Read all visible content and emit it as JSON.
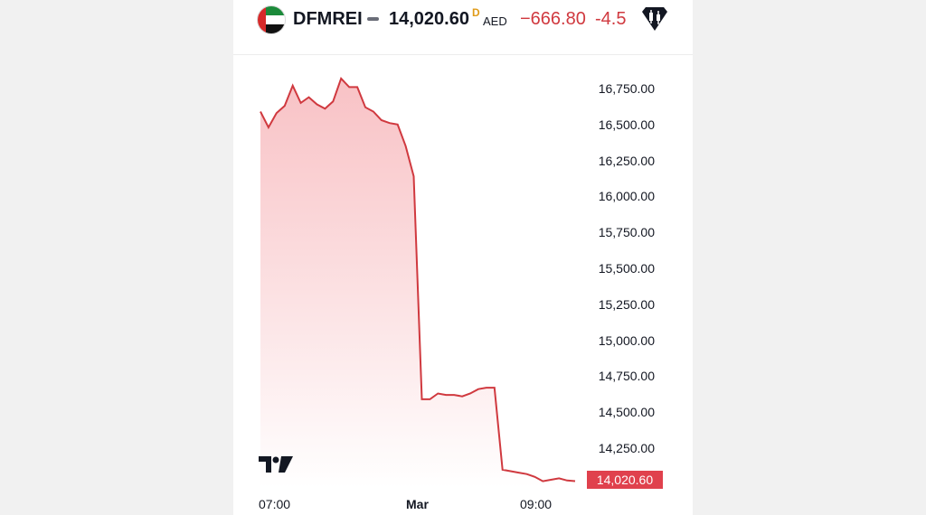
{
  "header": {
    "symbol": "DFMREI",
    "price": "14,020.60",
    "price_flag": "D",
    "currency": "AED",
    "change": "−666.80",
    "change_percent": "-4.5",
    "flag_icon": "uae-flag-icon",
    "alert_icon": "price-alert-icon"
  },
  "colors": {
    "line": "#d0393f",
    "area_top": "#f7b7bb",
    "price_tag": "#e0414d",
    "price_flag": "#e09b18"
  },
  "chart_data": {
    "type": "area",
    "title": "",
    "xlabel": "",
    "ylabel": "",
    "ylim": [
      14020.6,
      16900
    ],
    "y_ticks": [
      "16,750.00",
      "16,500.00",
      "16,250.00",
      "16,000.00",
      "15,750.00",
      "15,500.00",
      "15,250.00",
      "15,000.00",
      "14,750.00",
      "14,500.00",
      "14,250.00"
    ],
    "y_tick_values": [
      16750,
      16500,
      16250,
      16000,
      15750,
      15500,
      15250,
      15000,
      14750,
      14500,
      14250
    ],
    "x_ticks": [
      "07:00",
      "Mar",
      "09:00"
    ],
    "last_price_label": "14,020.60",
    "grid": false,
    "series": [
      {
        "values": [
          16590,
          16480,
          16580,
          16630,
          16770,
          16650,
          16690,
          16640,
          16610,
          16660,
          16820,
          16760,
          16760,
          16620,
          16590,
          16530,
          16510,
          16500,
          16350,
          16140,
          14590,
          14590,
          14630,
          14620,
          14620,
          14610,
          14630,
          14660,
          14670,
          14670,
          14100,
          14090,
          14080,
          14070,
          14050,
          14020,
          14030,
          14040,
          14025,
          14020.6
        ]
      }
    ]
  }
}
